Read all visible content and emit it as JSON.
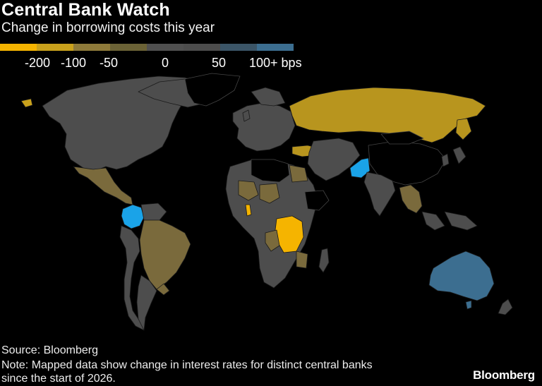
{
  "header": {
    "title": "Central Bank Watch",
    "subtitle": "Change in borrowing costs this year"
  },
  "legend": {
    "colors": [
      "#f5b400",
      "#c9a11c",
      "#8e7a3a",
      "#6b6236",
      "#505050",
      "#4c4c4c",
      "#3b5567",
      "#3c6e90",
      "#1aa3e8"
    ],
    "tick_labels": [
      "-200",
      "-100",
      "-50",
      "0",
      "50",
      "100+ bps"
    ]
  },
  "map": {
    "colors": {
      "no_data": "#000000",
      "neutral": "#4d4d4d",
      "cut_small": "#7a6a3c",
      "cut_medium": "#b8951e",
      "cut_large": "#f5b400",
      "hike_medium": "#3c6e90",
      "hike_large": "#1aa3e8",
      "border": "#1a1a1a"
    },
    "regions": [
      {
        "name": "North America",
        "category": "neutral"
      },
      {
        "name": "Mexico",
        "category": "cut_small"
      },
      {
        "name": "Colombia",
        "category": "hike_large"
      },
      {
        "name": "Brazil",
        "category": "cut_small"
      },
      {
        "name": "Europe",
        "category": "neutral"
      },
      {
        "name": "Russia",
        "category": "cut_medium"
      },
      {
        "name": "Turkey",
        "category": "cut_medium"
      },
      {
        "name": "Egypt",
        "category": "cut_small"
      },
      {
        "name": "Pakistan",
        "category": "hike_large"
      },
      {
        "name": "India",
        "category": "neutral"
      },
      {
        "name": "Congo",
        "category": "cut_large"
      },
      {
        "name": "Ghana",
        "category": "cut_large"
      },
      {
        "name": "Australia",
        "category": "hike_medium"
      }
    ]
  },
  "footer": {
    "source": "Source: Bloomberg",
    "note_line1": "Note: Mapped data show change in interest rates for distinct central banks",
    "note_line2": "since the start of 2026.",
    "brand": "Bloomberg"
  }
}
